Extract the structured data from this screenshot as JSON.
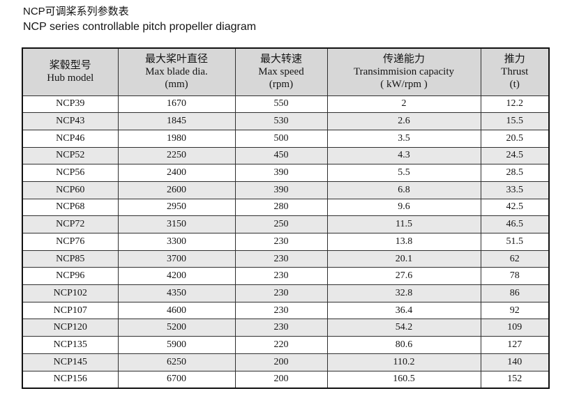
{
  "page": {
    "title_zh": "NCP可调桨系列参数表",
    "title_en": "NCP series controllable pitch propeller diagram"
  },
  "colors": {
    "header_bg": "#d7d7d7",
    "alt_row_bg": "#e8e8e8",
    "border": "#2f2f2f",
    "outer_border": "#111111",
    "text": "#141414"
  },
  "table": {
    "columns": [
      {
        "zh": "桨毂型号",
        "en": "Hub model",
        "unit": ""
      },
      {
        "zh": "最大桨叶直径",
        "en": "Max blade dia.",
        "unit": "(mm)"
      },
      {
        "zh": "最大转速",
        "en": "Max speed",
        "unit": "(rpm)"
      },
      {
        "zh": "传递能力",
        "en": "Transimmision capacity",
        "unit": "( kW/rpm )"
      },
      {
        "zh": "推力",
        "en": "Thrust",
        "unit": "(t)"
      }
    ],
    "rows": [
      [
        "NCP39",
        "1670",
        "550",
        "2",
        "12.2"
      ],
      [
        "NCP43",
        "1845",
        "530",
        "2.6",
        "15.5"
      ],
      [
        "NCP46",
        "1980",
        "500",
        "3.5",
        "20.5"
      ],
      [
        "NCP52",
        "2250",
        "450",
        "4.3",
        "24.5"
      ],
      [
        "NCP56",
        "2400",
        "390",
        "5.5",
        "28.5"
      ],
      [
        "NCP60",
        "2600",
        "390",
        "6.8",
        "33.5"
      ],
      [
        "NCP68",
        "2950",
        "280",
        "9.6",
        "42.5"
      ],
      [
        "NCP72",
        "3150",
        "250",
        "11.5",
        "46.5"
      ],
      [
        "NCP76",
        "3300",
        "230",
        "13.8",
        "51.5"
      ],
      [
        "NCP85",
        "3700",
        "230",
        "20.1",
        "62"
      ],
      [
        "NCP96",
        "4200",
        "230",
        "27.6",
        "78"
      ],
      [
        "NCP102",
        "4350",
        "230",
        "32.8",
        "86"
      ],
      [
        "NCP107",
        "4600",
        "230",
        "36.4",
        "92"
      ],
      [
        "NCP120",
        "5200",
        "230",
        "54.2",
        "109"
      ],
      [
        "NCP135",
        "5900",
        "220",
        "80.6",
        "127"
      ],
      [
        "NCP145",
        "6250",
        "200",
        "110.2",
        "140"
      ],
      [
        "NCP156",
        "6700",
        "200",
        "160.5",
        "152"
      ]
    ]
  }
}
